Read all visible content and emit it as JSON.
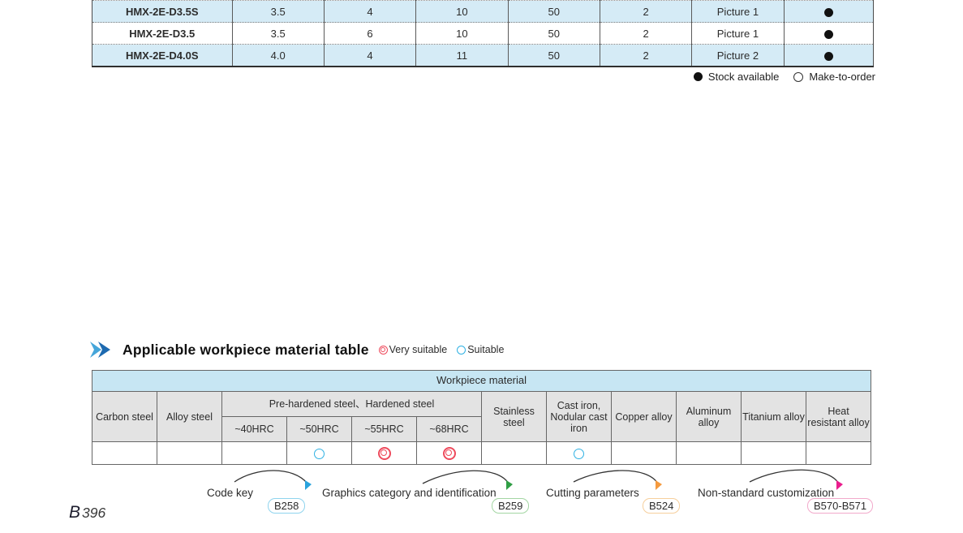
{
  "product_table": {
    "rows": [
      {
        "model": "HMX-2E-D3.5S",
        "values": [
          "3.5",
          "4",
          "10",
          "50",
          "2",
          "Picture 1"
        ],
        "availability": "stock"
      },
      {
        "model": "HMX-2E-D3.5",
        "values": [
          "3.5",
          "6",
          "10",
          "50",
          "2",
          "Picture 1"
        ],
        "availability": "stock"
      },
      {
        "model": "HMX-2E-D4.0S",
        "values": [
          "4.0",
          "4",
          "11",
          "50",
          "2",
          "Picture 2"
        ],
        "availability": "stock"
      }
    ],
    "legend": {
      "stock": "Stock available",
      "make_to_order": "Make-to-order"
    }
  },
  "section": {
    "title": "Applicable workpiece material table",
    "legend": {
      "very_suitable": "Very suitable",
      "suitable": "Suitable"
    }
  },
  "material_table": {
    "band_title": "Workpiece material",
    "group_header": "Pre-hardened steel、Hardened steel",
    "columns": [
      "Carbon steel",
      "Alloy steel",
      "~40HRC",
      "~50HRC",
      "~55HRC",
      "~68HRC",
      "Stainless steel",
      "Cast iron, Nodular cast iron",
      "Copper alloy",
      "Aluminum alloy",
      "Titanium alloy",
      "Heat resistant alloy"
    ],
    "marks": [
      "",
      "",
      "",
      "suitable",
      "very_suitable",
      "very_suitable",
      "",
      "suitable",
      "",
      "",
      "",
      ""
    ]
  },
  "annotations": [
    {
      "label": "Code key",
      "badge": "B258",
      "accent": "#8fd4ee",
      "arrow_color": "#29a3dd"
    },
    {
      "label": "Graphics category and identification",
      "badge": "B259",
      "accent": "#a3d6a3",
      "arrow_color": "#2f9e44"
    },
    {
      "label": "Cutting parameters",
      "badge": "B524",
      "accent": "#f6cf9c",
      "arrow_color": "#f59a3e"
    },
    {
      "label": "Non-standard customization",
      "badge": "B570-B571",
      "accent": "#f2a9cb",
      "arrow_color": "#ea1d8d"
    }
  ],
  "page_label": {
    "prefix": "B",
    "number": "396"
  },
  "colors": {
    "row_blue": "#d5ebf6",
    "band_blue": "#c7e6f3",
    "header_gray": "#e3e3e3",
    "very_suitable_red": "#ee4a5c",
    "suitable_blue": "#2fb1e3",
    "title_arrow_light": "#45a5d9",
    "title_arrow_dark": "#1d6ab0"
  }
}
